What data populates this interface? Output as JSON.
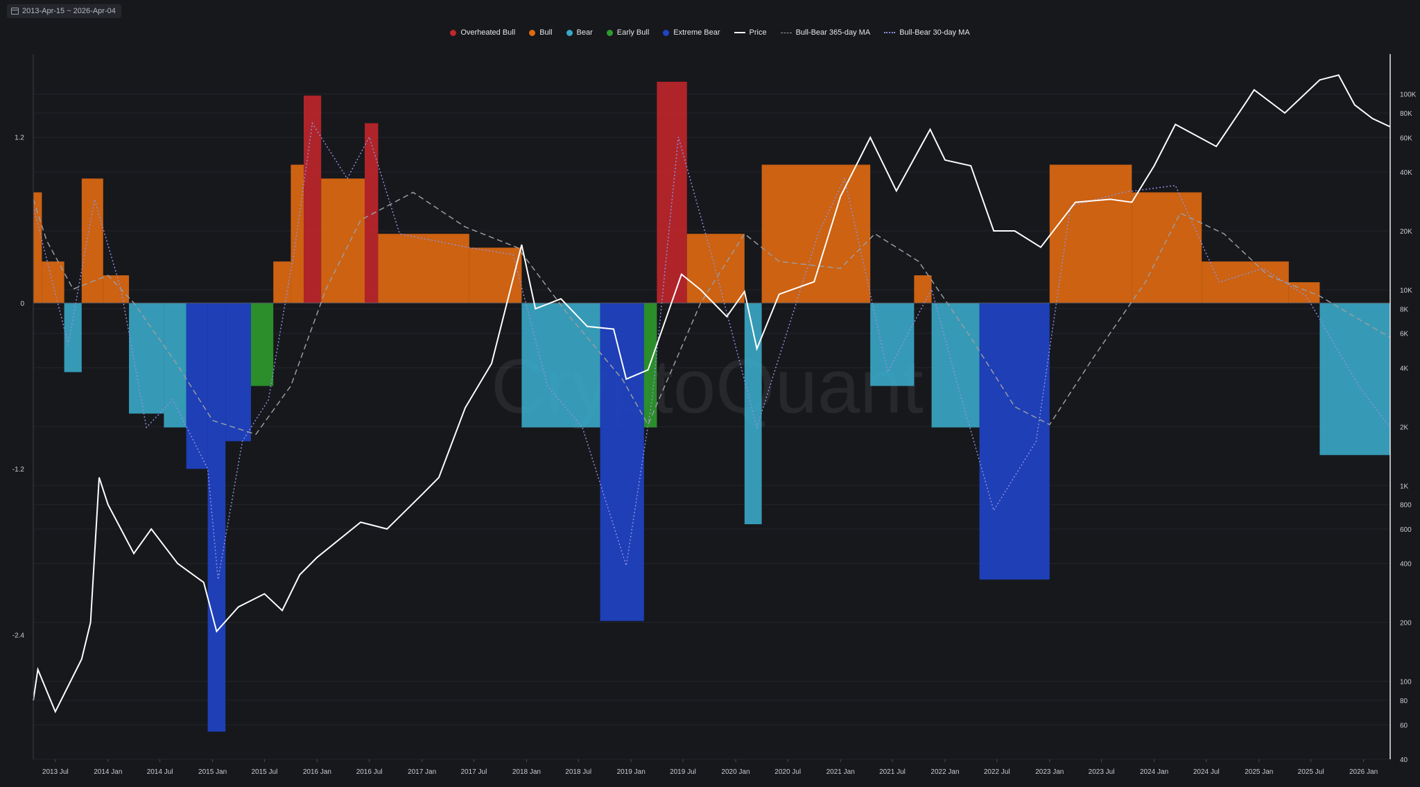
{
  "date_range": {
    "label": "2013-Apr-15 ~ 2026-Apr-04"
  },
  "watermark": "CryptoQuant",
  "legend": [
    {
      "key": "overheated",
      "label": "Overheated Bull",
      "color": "#c0262b",
      "style": "dot"
    },
    {
      "key": "bull",
      "label": "Bull",
      "color": "#e06a12",
      "style": "dot"
    },
    {
      "key": "bear",
      "label": "Bear",
      "color": "#3aa8c8",
      "style": "dot"
    },
    {
      "key": "earlybull",
      "label": "Early Bull",
      "color": "#2e9b2e",
      "style": "dot"
    },
    {
      "key": "extremebear",
      "label": "Extreme Bear",
      "color": "#1f44c8",
      "style": "dot"
    },
    {
      "key": "price",
      "label": "Price",
      "color": "#ffffff",
      "style": "line"
    },
    {
      "key": "ma365",
      "label": "Bull-Bear 365-day MA",
      "color": "#9a9ca3",
      "style": "dashed"
    },
    {
      "key": "ma30",
      "label": "Bull-Bear 30-day MA",
      "color": "#8f8fe0",
      "style": "dotted"
    }
  ],
  "chart_data": {
    "type": "bar",
    "x_range": [
      "2013-04-15",
      "2026-04-04"
    ],
    "x_ticks": [
      "2013 Jul",
      "2014 Jan",
      "2014 Jul",
      "2015 Jan",
      "2015 Jul",
      "2016 Jan",
      "2016 Jul",
      "2017 Jan",
      "2017 Jul",
      "2018 Jan",
      "2018 Jul",
      "2019 Jan",
      "2019 Jul",
      "2020 Jan",
      "2020 Jul",
      "2021 Jan",
      "2021 Jul",
      "2022 Jan",
      "2022 Jul",
      "2023 Jan",
      "2023 Jul",
      "2024 Jan",
      "2024 Jul",
      "2025 Jan",
      "2025 Jul",
      "2026 Jan"
    ],
    "y_left": {
      "ticks": [
        1.2,
        0,
        -1.2,
        -2.4
      ],
      "tick_labels": [
        "1.2",
        "0",
        "-1.2",
        "-2.4"
      ],
      "range": [
        -3.3,
        1.8
      ]
    },
    "y_right": {
      "scale": "log",
      "range": [
        40,
        160000
      ],
      "ticks": [
        40,
        60,
        80,
        100,
        200,
        400,
        600,
        800,
        1000,
        2000,
        4000,
        6000,
        8000,
        10000,
        20000,
        40000,
        60000,
        80000,
        100000
      ],
      "tick_labels": [
        "40",
        "60",
        "80",
        "100",
        "200",
        "400",
        "600",
        "800",
        "1K",
        "2K",
        "4K",
        "6K",
        "8K",
        "10K",
        "20K",
        "40K",
        "60K",
        "80K",
        "100K"
      ]
    },
    "regime_colors": {
      "O": "#c0262b",
      "B": "#e06a12",
      "R": "#3aa8c8",
      "G": "#2e9b2e",
      "E": "#1f44c8"
    },
    "bull_bear_segments": [
      {
        "start": "2013-04-15",
        "end": "2013-05-15",
        "value": 0.8,
        "regime": "B"
      },
      {
        "start": "2013-05-15",
        "end": "2013-08-01",
        "value": 0.3,
        "regime": "B"
      },
      {
        "start": "2013-08-01",
        "end": "2013-10-01",
        "value": -0.5,
        "regime": "R"
      },
      {
        "start": "2013-10-01",
        "end": "2013-12-15",
        "value": 0.9,
        "regime": "B"
      },
      {
        "start": "2013-12-15",
        "end": "2014-03-15",
        "value": 0.2,
        "regime": "B"
      },
      {
        "start": "2014-03-15",
        "end": "2014-07-15",
        "value": -0.8,
        "regime": "R"
      },
      {
        "start": "2014-07-15",
        "end": "2014-10-01",
        "value": -0.9,
        "regime": "R"
      },
      {
        "start": "2014-10-01",
        "end": "2014-12-15",
        "value": -1.2,
        "regime": "E"
      },
      {
        "start": "2014-12-15",
        "end": "2015-02-15",
        "value": -3.1,
        "regime": "E"
      },
      {
        "start": "2015-02-15",
        "end": "2015-05-15",
        "value": -1.0,
        "regime": "E"
      },
      {
        "start": "2015-05-15",
        "end": "2015-08-01",
        "value": -0.6,
        "regime": "G"
      },
      {
        "start": "2015-08-01",
        "end": "2015-10-01",
        "value": 0.3,
        "regime": "B"
      },
      {
        "start": "2015-10-01",
        "end": "2015-11-15",
        "value": 1.0,
        "regime": "B"
      },
      {
        "start": "2015-11-15",
        "end": "2016-01-15",
        "value": 1.5,
        "regime": "O"
      },
      {
        "start": "2016-01-15",
        "end": "2016-06-15",
        "value": 0.9,
        "regime": "B"
      },
      {
        "start": "2016-06-15",
        "end": "2016-08-01",
        "value": 1.3,
        "regime": "O"
      },
      {
        "start": "2016-08-01",
        "end": "2017-06-15",
        "value": 0.5,
        "regime": "B"
      },
      {
        "start": "2017-06-15",
        "end": "2017-12-15",
        "value": 0.4,
        "regime": "B"
      },
      {
        "start": "2017-12-15",
        "end": "2018-09-15",
        "value": -0.9,
        "regime": "R"
      },
      {
        "start": "2018-09-15",
        "end": "2019-02-15",
        "value": -2.3,
        "regime": "E"
      },
      {
        "start": "2019-02-15",
        "end": "2019-04-01",
        "value": -0.9,
        "regime": "G"
      },
      {
        "start": "2019-04-01",
        "end": "2019-07-15",
        "value": 1.6,
        "regime": "O"
      },
      {
        "start": "2019-07-15",
        "end": "2020-02-01",
        "value": 0.5,
        "regime": "B"
      },
      {
        "start": "2020-02-01",
        "end": "2020-04-01",
        "value": -1.6,
        "regime": "R"
      },
      {
        "start": "2020-04-01",
        "end": "2021-04-15",
        "value": 1.0,
        "regime": "B"
      },
      {
        "start": "2021-04-15",
        "end": "2021-09-15",
        "value": -0.6,
        "regime": "R"
      },
      {
        "start": "2021-09-15",
        "end": "2021-11-15",
        "value": 0.2,
        "regime": "B"
      },
      {
        "start": "2021-11-15",
        "end": "2022-05-01",
        "value": -0.9,
        "regime": "R"
      },
      {
        "start": "2022-05-01",
        "end": "2023-01-01",
        "value": -2.0,
        "regime": "E"
      },
      {
        "start": "2023-01-01",
        "end": "2023-10-15",
        "value": 1.0,
        "regime": "B"
      },
      {
        "start": "2023-10-15",
        "end": "2024-06-15",
        "value": 0.8,
        "regime": "B"
      },
      {
        "start": "2024-06-15",
        "end": "2025-04-15",
        "value": 0.3,
        "regime": "B"
      },
      {
        "start": "2025-04-15",
        "end": "2025-08-01",
        "value": 0.15,
        "regime": "B"
      },
      {
        "start": "2025-08-01",
        "end": "2026-04-04",
        "value": -1.1,
        "regime": "R"
      }
    ],
    "price": [
      {
        "date": "2013-04-15",
        "value": 80
      },
      {
        "date": "2013-05-01",
        "value": 115
      },
      {
        "date": "2013-07-01",
        "value": 70
      },
      {
        "date": "2013-10-01",
        "value": 130
      },
      {
        "date": "2013-11-01",
        "value": 200
      },
      {
        "date": "2013-12-01",
        "value": 1100
      },
      {
        "date": "2014-01-01",
        "value": 800
      },
      {
        "date": "2014-04-01",
        "value": 450
      },
      {
        "date": "2014-06-01",
        "value": 600
      },
      {
        "date": "2014-09-01",
        "value": 400
      },
      {
        "date": "2014-12-01",
        "value": 320
      },
      {
        "date": "2015-01-15",
        "value": 180
      },
      {
        "date": "2015-04-01",
        "value": 240
      },
      {
        "date": "2015-07-01",
        "value": 280
      },
      {
        "date": "2015-09-01",
        "value": 230
      },
      {
        "date": "2015-11-01",
        "value": 350
      },
      {
        "date": "2016-01-01",
        "value": 430
      },
      {
        "date": "2016-06-01",
        "value": 650
      },
      {
        "date": "2016-09-01",
        "value": 600
      },
      {
        "date": "2017-01-01",
        "value": 900
      },
      {
        "date": "2017-03-01",
        "value": 1100
      },
      {
        "date": "2017-06-01",
        "value": 2500
      },
      {
        "date": "2017-09-01",
        "value": 4200
      },
      {
        "date": "2017-12-15",
        "value": 17000
      },
      {
        "date": "2018-02-01",
        "value": 8000
      },
      {
        "date": "2018-05-01",
        "value": 9000
      },
      {
        "date": "2018-08-01",
        "value": 6500
      },
      {
        "date": "2018-11-01",
        "value": 6300
      },
      {
        "date": "2018-12-15",
        "value": 3500
      },
      {
        "date": "2019-03-01",
        "value": 3900
      },
      {
        "date": "2019-06-26",
        "value": 12000
      },
      {
        "date": "2019-09-01",
        "value": 10000
      },
      {
        "date": "2019-12-01",
        "value": 7300
      },
      {
        "date": "2020-02-01",
        "value": 9800
      },
      {
        "date": "2020-03-15",
        "value": 5000
      },
      {
        "date": "2020-06-01",
        "value": 9500
      },
      {
        "date": "2020-10-01",
        "value": 11000
      },
      {
        "date": "2021-01-01",
        "value": 30000
      },
      {
        "date": "2021-04-15",
        "value": 60000
      },
      {
        "date": "2021-07-15",
        "value": 32000
      },
      {
        "date": "2021-11-10",
        "value": 66000
      },
      {
        "date": "2022-01-01",
        "value": 46000
      },
      {
        "date": "2022-04-01",
        "value": 43000
      },
      {
        "date": "2022-06-20",
        "value": 20000
      },
      {
        "date": "2022-09-01",
        "value": 20000
      },
      {
        "date": "2022-12-01",
        "value": 16500
      },
      {
        "date": "2023-04-01",
        "value": 28000
      },
      {
        "date": "2023-08-01",
        "value": 29000
      },
      {
        "date": "2023-10-15",
        "value": 28000
      },
      {
        "date": "2024-01-01",
        "value": 43000
      },
      {
        "date": "2024-03-15",
        "value": 70000
      },
      {
        "date": "2024-08-05",
        "value": 54000
      },
      {
        "date": "2024-11-15",
        "value": 90000
      },
      {
        "date": "2024-12-15",
        "value": 105000
      },
      {
        "date": "2025-04-01",
        "value": 80000
      },
      {
        "date": "2025-08-01",
        "value": 118000
      },
      {
        "date": "2025-10-06",
        "value": 125000
      },
      {
        "date": "2025-12-01",
        "value": 88000
      },
      {
        "date": "2026-02-01",
        "value": 75000
      },
      {
        "date": "2026-04-04",
        "value": 68000
      }
    ],
    "ma365": [
      {
        "date": "2013-04-15",
        "value": 0.75
      },
      {
        "date": "2013-06-01",
        "value": 0.45
      },
      {
        "date": "2013-09-01",
        "value": 0.1
      },
      {
        "date": "2014-01-01",
        "value": 0.2
      },
      {
        "date": "2014-04-01",
        "value": 0.0
      },
      {
        "date": "2014-09-01",
        "value": -0.45
      },
      {
        "date": "2015-01-01",
        "value": -0.85
      },
      {
        "date": "2015-06-01",
        "value": -0.95
      },
      {
        "date": "2015-10-01",
        "value": -0.6
      },
      {
        "date": "2016-02-01",
        "value": 0.1
      },
      {
        "date": "2016-06-01",
        "value": 0.6
      },
      {
        "date": "2016-12-01",
        "value": 0.8
      },
      {
        "date": "2017-06-01",
        "value": 0.55
      },
      {
        "date": "2017-12-01",
        "value": 0.4
      },
      {
        "date": "2018-06-01",
        "value": -0.1
      },
      {
        "date": "2018-12-01",
        "value": -0.55
      },
      {
        "date": "2019-03-01",
        "value": -0.88
      },
      {
        "date": "2019-09-01",
        "value": 0.0
      },
      {
        "date": "2020-02-01",
        "value": 0.5
      },
      {
        "date": "2020-06-01",
        "value": 0.3
      },
      {
        "date": "2021-01-01",
        "value": 0.25
      },
      {
        "date": "2021-05-01",
        "value": 0.5
      },
      {
        "date": "2021-10-01",
        "value": 0.3
      },
      {
        "date": "2022-04-01",
        "value": -0.25
      },
      {
        "date": "2022-09-01",
        "value": -0.75
      },
      {
        "date": "2023-01-01",
        "value": -0.88
      },
      {
        "date": "2023-06-01",
        "value": -0.4
      },
      {
        "date": "2023-12-01",
        "value": 0.15
      },
      {
        "date": "2024-04-01",
        "value": 0.65
      },
      {
        "date": "2024-09-01",
        "value": 0.5
      },
      {
        "date": "2025-02-01",
        "value": 0.2
      },
      {
        "date": "2025-08-01",
        "value": 0.05
      },
      {
        "date": "2025-12-01",
        "value": -0.1
      },
      {
        "date": "2026-04-04",
        "value": -0.25
      }
    ],
    "ma30": [
      {
        "date": "2013-04-15",
        "value": 0.7
      },
      {
        "date": "2013-08-15",
        "value": -0.3
      },
      {
        "date": "2013-11-15",
        "value": 0.75
      },
      {
        "date": "2014-02-15",
        "value": 0.1
      },
      {
        "date": "2014-05-15",
        "value": -0.9
      },
      {
        "date": "2014-08-15",
        "value": -0.7
      },
      {
        "date": "2014-12-15",
        "value": -1.2
      },
      {
        "date": "2015-01-20",
        "value": -2.0
      },
      {
        "date": "2015-04-15",
        "value": -1.0
      },
      {
        "date": "2015-07-15",
        "value": -0.7
      },
      {
        "date": "2015-10-15",
        "value": 0.4
      },
      {
        "date": "2015-12-15",
        "value": 1.3
      },
      {
        "date": "2016-04-15",
        "value": 0.9
      },
      {
        "date": "2016-07-01",
        "value": 1.2
      },
      {
        "date": "2016-10-15",
        "value": 0.5
      },
      {
        "date": "2017-06-15",
        "value": 0.4
      },
      {
        "date": "2017-11-15",
        "value": 0.35
      },
      {
        "date": "2018-03-15",
        "value": -0.6
      },
      {
        "date": "2018-07-15",
        "value": -0.9
      },
      {
        "date": "2018-12-15",
        "value": -1.9
      },
      {
        "date": "2019-03-15",
        "value": -0.7
      },
      {
        "date": "2019-06-15",
        "value": 1.2
      },
      {
        "date": "2019-10-15",
        "value": 0.3
      },
      {
        "date": "2020-03-15",
        "value": -0.9
      },
      {
        "date": "2020-10-15",
        "value": 0.5
      },
      {
        "date": "2021-01-15",
        "value": 0.9
      },
      {
        "date": "2021-06-15",
        "value": -0.5
      },
      {
        "date": "2021-11-15",
        "value": 0.1
      },
      {
        "date": "2022-02-15",
        "value": -0.6
      },
      {
        "date": "2022-06-20",
        "value": -1.5
      },
      {
        "date": "2022-11-15",
        "value": -1.0
      },
      {
        "date": "2023-03-15",
        "value": 0.7
      },
      {
        "date": "2023-09-15",
        "value": 0.8
      },
      {
        "date": "2024-03-15",
        "value": 0.85
      },
      {
        "date": "2024-08-15",
        "value": 0.15
      },
      {
        "date": "2025-01-15",
        "value": 0.25
      },
      {
        "date": "2025-06-15",
        "value": 0.05
      },
      {
        "date": "2025-12-15",
        "value": -0.6
      },
      {
        "date": "2026-04-04",
        "value": -0.9
      }
    ]
  }
}
